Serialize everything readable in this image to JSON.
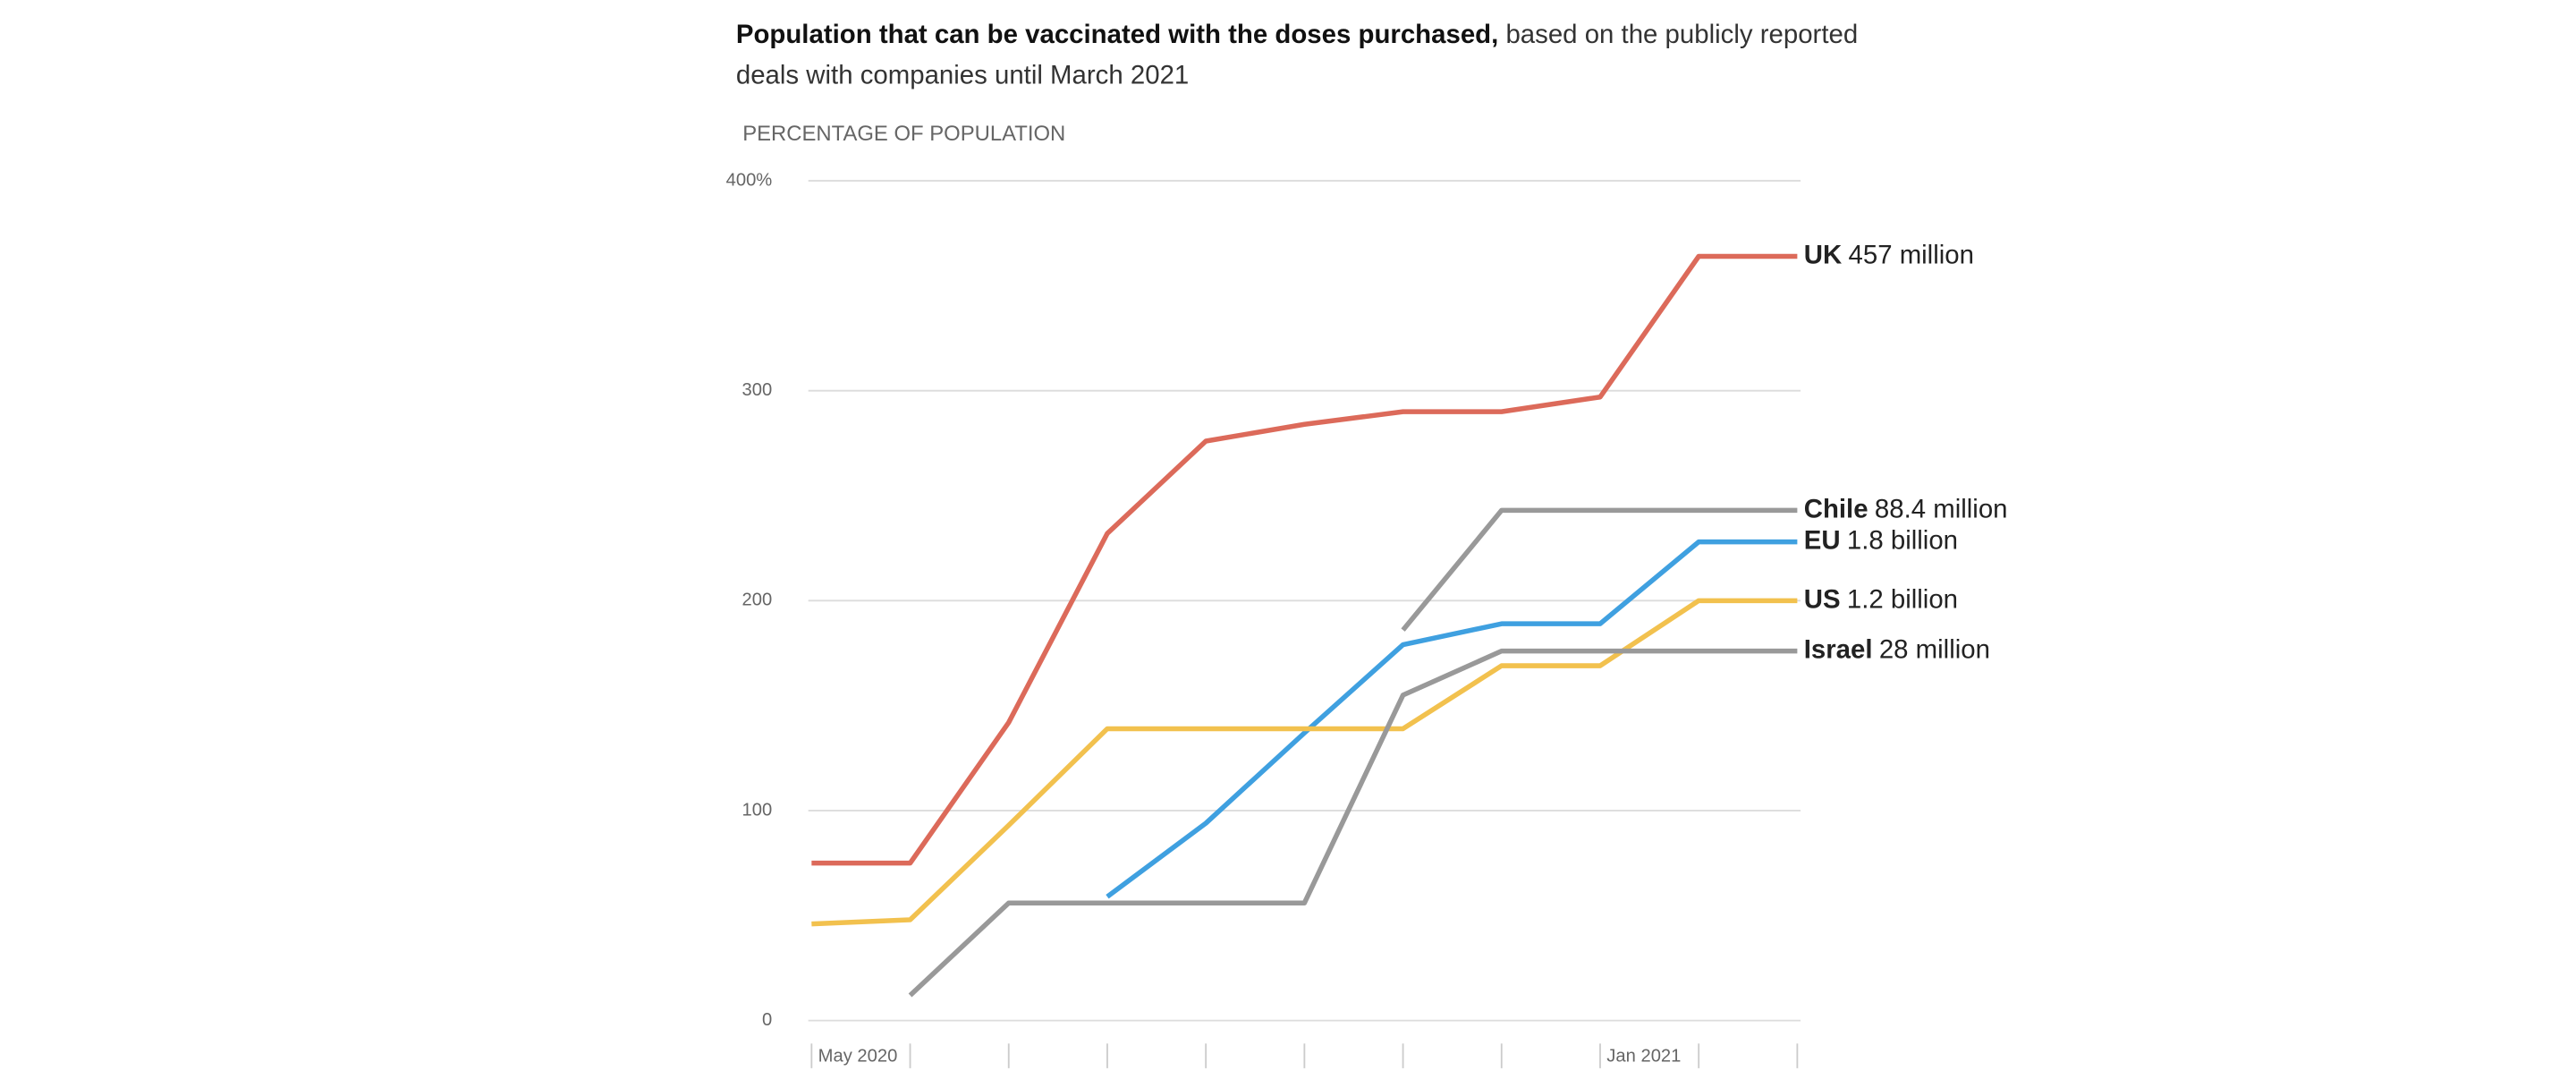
{
  "chart_data": {
    "type": "line",
    "title_bold": "Population that can be vaccinated with the doses purchased,",
    "title": "based on the publicly reported deals with companies until March 2021",
    "y_label": "PERCENTAGE OF POPULATION",
    "categories": [
      "May 2020",
      null,
      null,
      null,
      null,
      null,
      null,
      null,
      "Jan 2021",
      null,
      null
    ],
    "ylim": [
      0,
      400
    ],
    "yticks": [
      0,
      100,
      200,
      300,
      {
        "value": 400,
        "label": "400%"
      }
    ],
    "grid": true,
    "series": [
      {
        "name": "UK",
        "label": "457 million",
        "color": "#dc6a5a",
        "values": [
          75,
          75,
          142,
          232,
          276,
          284,
          290,
          290,
          297,
          364,
          364
        ]
      },
      {
        "name": "Chile",
        "label": "88.4 million",
        "color": "#999999",
        "values": [
          null,
          null,
          null,
          null,
          null,
          null,
          186,
          243,
          243,
          243,
          243
        ]
      },
      {
        "name": "EU",
        "label": "1.8 billion",
        "color": "#3fa0e0",
        "values": [
          null,
          null,
          null,
          59,
          94,
          137,
          179,
          189,
          189,
          228,
          228
        ]
      },
      {
        "name": "US",
        "label": "1.2 billion",
        "color": "#f2c14e",
        "values": [
          46,
          48,
          93,
          139,
          139,
          139,
          139,
          169,
          169,
          200,
          200
        ]
      },
      {
        "name": "Israel",
        "label": "28 million",
        "color": "#999999",
        "values": [
          null,
          12,
          56,
          56,
          56,
          56,
          155,
          176,
          176,
          176,
          176
        ]
      }
    ]
  }
}
